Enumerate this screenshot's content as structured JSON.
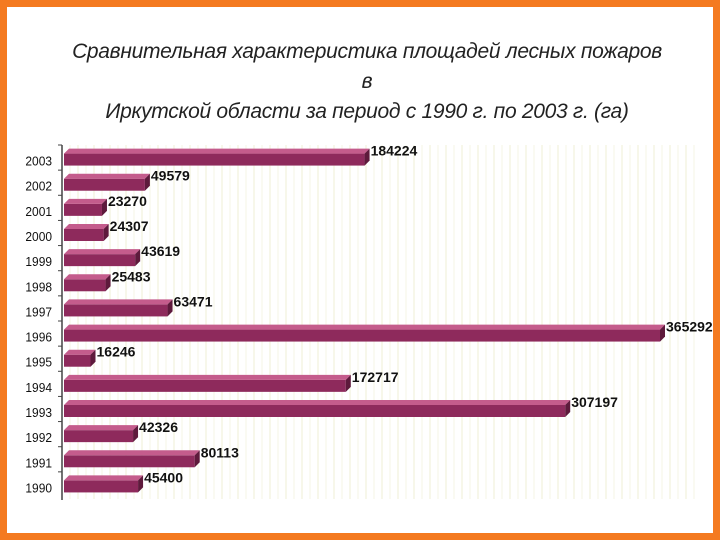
{
  "chart_data": {
    "type": "bar",
    "orientation": "horizontal",
    "title_line1": "Сравнительная характеристика площадей лесных пожаров в",
    "title_line2": "Иркутской области за период с 1990 г. по 2003 г. (га)",
    "categories": [
      "2003",
      "2002",
      "2001",
      "2000",
      "1999",
      "1998",
      "1997",
      "1996",
      "1995",
      "1994",
      "1993",
      "1992",
      "1991",
      "1990"
    ],
    "values": [
      184224,
      49579,
      23270,
      24307,
      43619,
      25483,
      63471,
      365292,
      16246,
      172717,
      307197,
      42326,
      80113,
      45400
    ],
    "value_labels": [
      "184224",
      "49579",
      "23270",
      "24307",
      "43619",
      "25483",
      "63471",
      "365292",
      "16246",
      "172717",
      "307197",
      "42326",
      "80113",
      "45400"
    ],
    "xlim": [
      0,
      380000
    ],
    "grid": "vertical",
    "bar_color": "#8e2a5c",
    "bar_top_color": "#c45c8c"
  }
}
